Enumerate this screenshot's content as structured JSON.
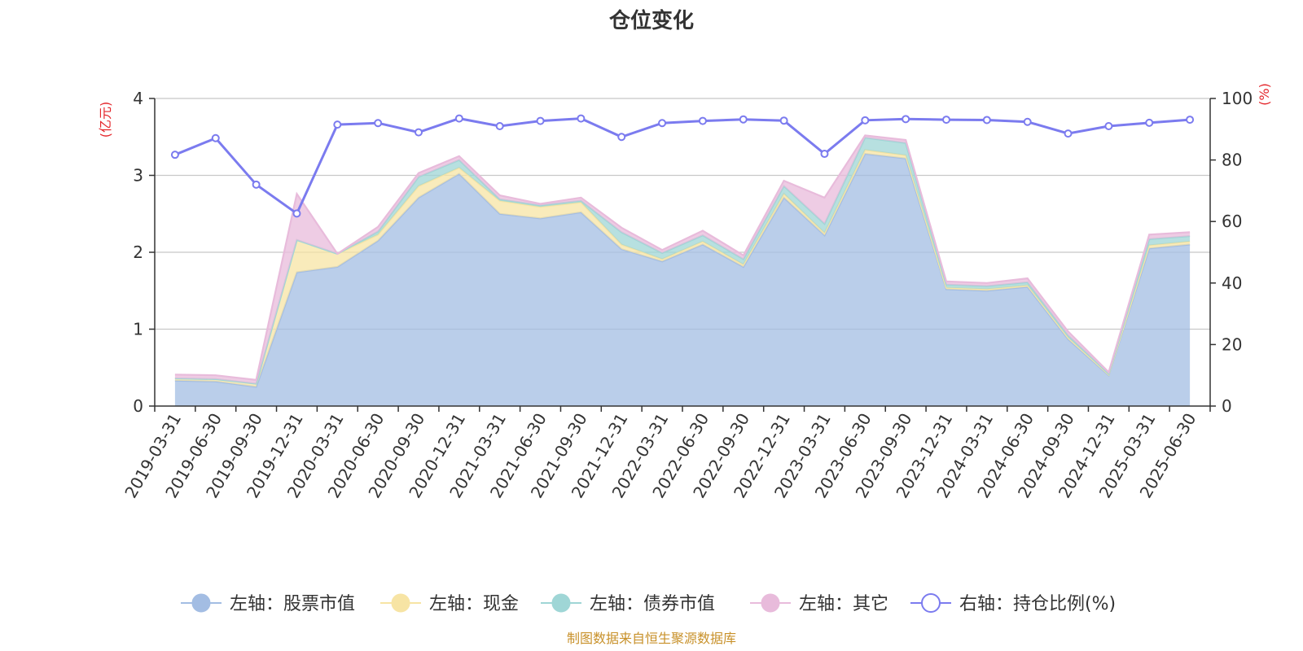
{
  "chart_data": {
    "type": "area",
    "title": "仓位变化",
    "left_unit": "(亿元)",
    "right_unit": "(%)",
    "categories": [
      "2019-03-31",
      "2019-06-30",
      "2019-09-30",
      "2019-12-31",
      "2020-03-31",
      "2020-06-30",
      "2020-09-30",
      "2020-12-31",
      "2021-03-31",
      "2021-06-30",
      "2021-09-30",
      "2021-12-31",
      "2022-03-31",
      "2022-06-30",
      "2022-09-30",
      "2022-12-31",
      "2023-03-31",
      "2023-06-30",
      "2023-09-30",
      "2023-12-31",
      "2024-03-31",
      "2024-06-30",
      "2024-09-30",
      "2024-12-31",
      "2025-03-31",
      "2025-06-30"
    ],
    "ylim_left": [
      0,
      4
    ],
    "yticks_left": [
      "0",
      "1",
      "2",
      "3",
      "4"
    ],
    "ylim_right": [
      0,
      100
    ],
    "yticks_right": [
      "0",
      "20",
      "40",
      "60",
      "80",
      "100"
    ],
    "grid": true,
    "legend_position": "bottom",
    "series": [
      {
        "name": "左轴：股票市值",
        "axis": "left",
        "kind": "area",
        "color": "#a3bde3",
        "values": [
          0.33,
          0.32,
          0.25,
          1.74,
          1.81,
          2.15,
          2.71,
          3.02,
          2.5,
          2.44,
          2.52,
          2.04,
          1.88,
          2.1,
          1.81,
          2.71,
          2.22,
          3.28,
          3.22,
          1.52,
          1.5,
          1.55,
          0.87,
          0.4,
          2.05,
          2.1
        ]
      },
      {
        "name": "左轴：现金",
        "axis": "left",
        "kind": "area",
        "color": "#f7e4a4",
        "values": [
          0.03,
          0.03,
          0.04,
          0.42,
          0.17,
          0.08,
          0.15,
          0.08,
          0.17,
          0.15,
          0.13,
          0.06,
          0.03,
          0.04,
          0.03,
          0.05,
          0.03,
          0.05,
          0.04,
          0.02,
          0.02,
          0.02,
          0.02,
          0.01,
          0.04,
          0.04
        ]
      },
      {
        "name": "左轴：债券市值",
        "axis": "left",
        "kind": "area",
        "color": "#9fd6d6",
        "values": [
          0,
          0,
          0,
          0,
          0,
          0.04,
          0.12,
          0.1,
          0.02,
          0.02,
          0.02,
          0.16,
          0.08,
          0.08,
          0.07,
          0.1,
          0.12,
          0.16,
          0.16,
          0.04,
          0.04,
          0.04,
          0.03,
          0.01,
          0.08,
          0.07
        ]
      },
      {
        "name": "左轴：其它",
        "axis": "left",
        "kind": "area",
        "color": "#e8bbdb",
        "values": [
          0.05,
          0.05,
          0.05,
          0.6,
          0,
          0.06,
          0.05,
          0.05,
          0.05,
          0.02,
          0.04,
          0.06,
          0.04,
          0.06,
          0.05,
          0.07,
          0.34,
          0.03,
          0.04,
          0.04,
          0.04,
          0.05,
          0.05,
          0.02,
          0.06,
          0.05
        ]
      },
      {
        "name": "右轴：持仓比例(%)",
        "axis": "right",
        "kind": "line",
        "color": "#7b7bef",
        "values": [
          81.7,
          87.1,
          72.0,
          62.6,
          91.5,
          92.0,
          89.0,
          93.5,
          91.0,
          92.7,
          93.5,
          87.5,
          92.0,
          92.7,
          93.2,
          92.8,
          82.0,
          92.9,
          93.3,
          93.1,
          93.0,
          92.4,
          88.6,
          91.0,
          92.1,
          93.1
        ]
      }
    ]
  },
  "source_note": "制图数据来自恒生聚源数据库"
}
